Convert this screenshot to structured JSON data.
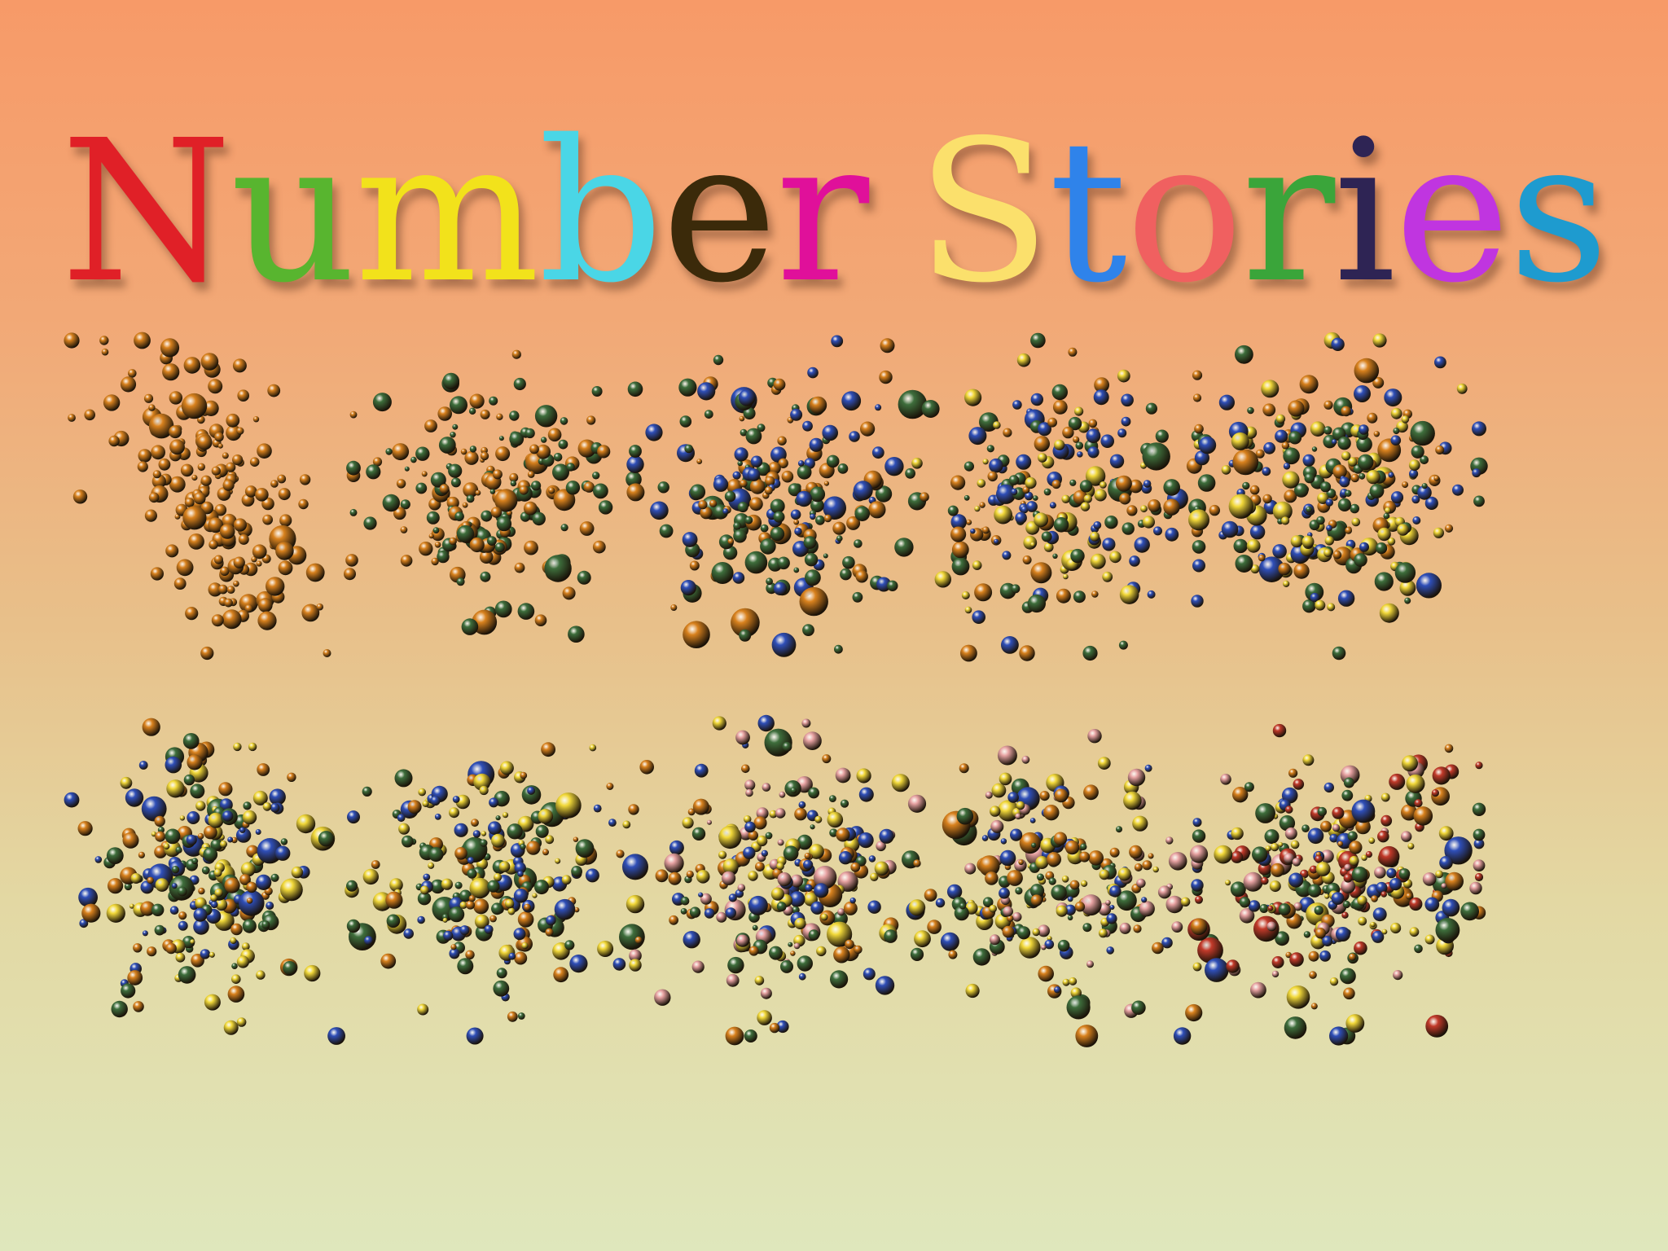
{
  "title": {
    "text": "Number Stories",
    "letter_colors": [
      "#e02027",
      "#58b52f",
      "#f2e21b",
      "#4ad6e6",
      "#3b2a0a",
      "#e0109a",
      null,
      "#fbe06c",
      "#2f83ea",
      "#f06060",
      "#3aa53a",
      "#2e2454",
      "#c035e0",
      "#1e9bcf"
    ]
  },
  "marble_colors": {
    "amber": "#d9821e",
    "green": "#3e6e3c",
    "blue": "#2f4fb8",
    "yellow": "#f2d93a",
    "red": "#c23a2a",
    "pink": "#e8a3a3"
  },
  "clusters": [
    {
      "id": 1,
      "count": 180,
      "palette": [
        "amber"
      ]
    },
    {
      "id": 2,
      "count": 190,
      "palette": [
        "amber",
        "green"
      ]
    },
    {
      "id": 3,
      "count": 200,
      "palette": [
        "amber",
        "green",
        "blue"
      ]
    },
    {
      "id": 4,
      "count": 210,
      "palette": [
        "amber",
        "green",
        "blue",
        "yellow"
      ]
    },
    {
      "id": 5,
      "count": 260,
      "palette": [
        "amber",
        "green",
        "blue",
        "yellow"
      ]
    },
    {
      "id": 6,
      "count": 230,
      "palette": [
        "amber",
        "green",
        "blue",
        "yellow"
      ]
    },
    {
      "id": 7,
      "count": 220,
      "palette": [
        "amber",
        "green",
        "blue",
        "yellow"
      ]
    },
    {
      "id": 8,
      "count": 230,
      "palette": [
        "amber",
        "green",
        "blue",
        "yellow",
        "pink"
      ]
    },
    {
      "id": 9,
      "count": 240,
      "palette": [
        "amber",
        "green",
        "blue",
        "yellow",
        "pink"
      ]
    },
    {
      "id": 10,
      "count": 280,
      "palette": [
        "amber",
        "green",
        "blue",
        "yellow",
        "pink",
        "red"
      ]
    }
  ]
}
